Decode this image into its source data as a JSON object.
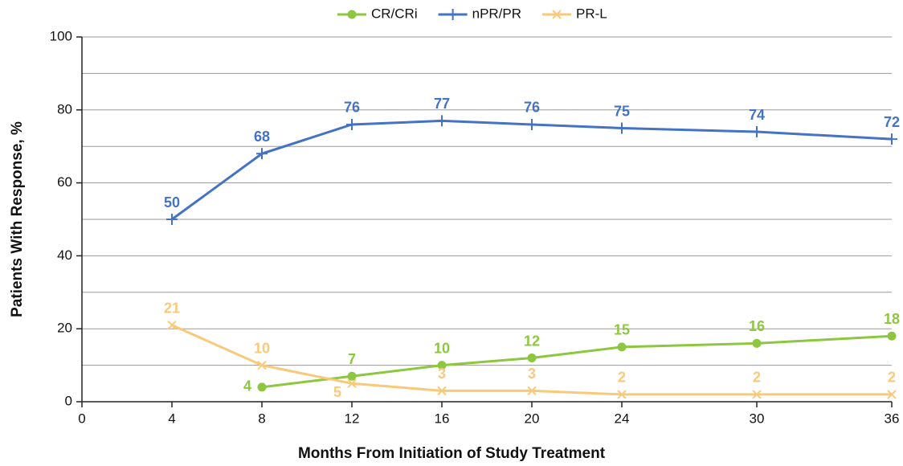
{
  "chart_data": {
    "type": "line",
    "x_label": "Months From Initiation of Study Treatment",
    "y_label": "Patients With Response, %",
    "x": [
      4,
      8,
      12,
      16,
      20,
      24,
      30,
      36
    ],
    "series": [
      {
        "name": "CR/CRi",
        "color": "#8dc63f",
        "marker": "circle",
        "values": [
          null,
          4,
          7,
          10,
          12,
          15,
          16,
          18
        ]
      },
      {
        "name": "nPR/PR",
        "color": "#4472c4",
        "marker": "plus",
        "values": [
          50,
          68,
          76,
          77,
          76,
          75,
          74,
          72
        ]
      },
      {
        "name": "PR-L",
        "color": "#f9c97a",
        "marker": "x",
        "values": [
          21,
          10,
          5,
          3,
          3,
          2,
          2,
          2
        ]
      }
    ],
    "xlim": [
      0,
      36
    ],
    "xticks": [
      0,
      4,
      8,
      12,
      16,
      20,
      24,
      30,
      36
    ],
    "ylim": [
      0,
      100
    ],
    "yticks": [
      0,
      20,
      40,
      60,
      80,
      100
    ],
    "ygrid": [
      10,
      20,
      30,
      40,
      50,
      60,
      70,
      80,
      90,
      100
    ],
    "grid": true,
    "legend": "top"
  }
}
